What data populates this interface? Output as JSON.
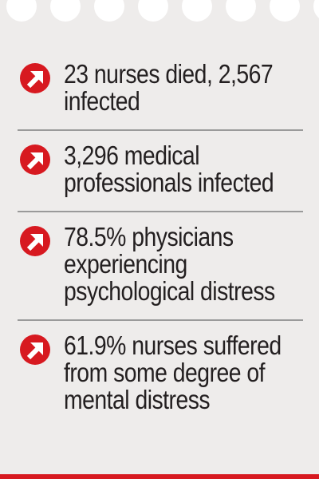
{
  "colors": {
    "accent": "#d71920",
    "background": "#eeeceb",
    "text": "#231f20",
    "divider": "#9a9a9a"
  },
  "icon": "arrow-up-right-icon",
  "items": [
    {
      "lines": [
        "23 nurses died, 2,567",
        "infected"
      ]
    },
    {
      "lines": [
        "3,296 medical",
        "professionals infected"
      ]
    },
    {
      "lines": [
        "78.5% physicians",
        "experiencing",
        "psychological distress"
      ]
    },
    {
      "lines": [
        "61.9% nurses suffered",
        "from some degree of",
        "mental distress"
      ]
    }
  ]
}
